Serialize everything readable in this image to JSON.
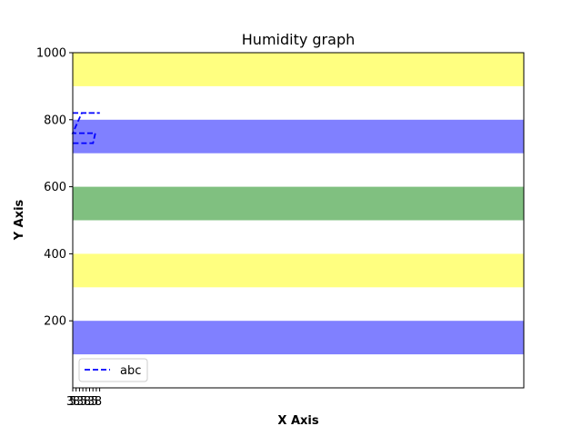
{
  "chart_data": {
    "type": "line",
    "title": "Humidity graph",
    "xlabel": "X Axis",
    "ylabel": "Y Axis",
    "ylim": [
      0,
      1000
    ],
    "xlim": [
      0,
      100
    ],
    "yticks": [
      200,
      400,
      600,
      800,
      1000
    ],
    "x_tick_labels": [
      "3",
      "5",
      "8"
    ],
    "bands": [
      {
        "y0": 100,
        "y1": 200,
        "color": "#8080ff"
      },
      {
        "y0": 300,
        "y1": 400,
        "color": "#ffff80"
      },
      {
        "y0": 500,
        "y1": 600,
        "color": "#80c080"
      },
      {
        "y0": 700,
        "y1": 800,
        "color": "#8080ff"
      },
      {
        "y0": 900,
        "y1": 1000,
        "color": "#ffff80"
      }
    ],
    "series": [
      {
        "name": "abc",
        "color": "#0000ff",
        "style": "dashed",
        "x": [
          0,
          2.0,
          6.0,
          2.0,
          0,
          5.0,
          4.5,
          0
        ],
        "y": [
          820,
          820,
          820,
          820,
          760,
          760,
          730,
          730
        ]
      }
    ],
    "legend_position": "lower-left",
    "grid": false
  }
}
